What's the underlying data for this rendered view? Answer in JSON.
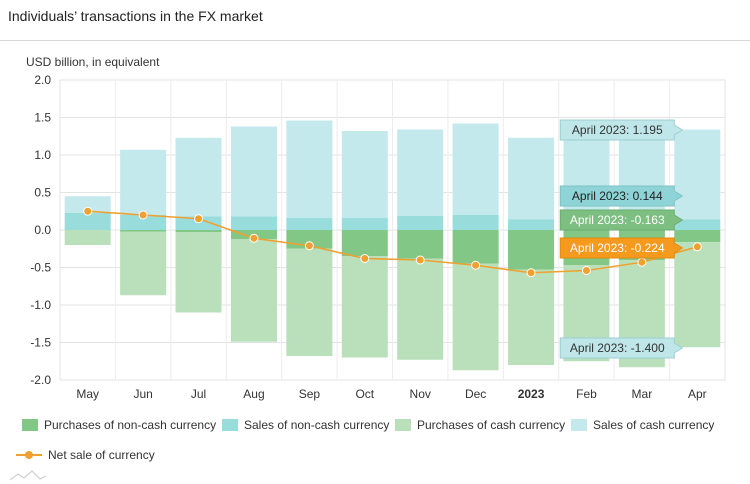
{
  "title": "Individuals’ transactions in the FX market",
  "unit_label": "USD billion, in equivalent",
  "colors": {
    "purchases_noncash": "#82c785",
    "sales_noncash": "#99dcdc",
    "purchases_cash": "#b9e0bb",
    "sales_cash": "#c3e9ec",
    "net": "#f0a030",
    "tooltip_cyan": "#bfe6e8",
    "tooltip_teal": "#8ed3d6",
    "tooltip_green": "#7cbf80",
    "tooltip_orange": "#f59a1c"
  },
  "chart_data": {
    "type": "bar",
    "categories": [
      "May",
      "Jun",
      "Jul",
      "Aug",
      "Sep",
      "Oct",
      "Nov",
      "Dec",
      "2023",
      "Feb",
      "Mar",
      "Apr"
    ],
    "bold_categories": [
      "2023"
    ],
    "ylim": [
      -2.0,
      2.0
    ],
    "yticks": [
      "2.0",
      "1.5",
      "1.0",
      "0.5",
      "0.0",
      "-0.5",
      "-1.0",
      "-1.5",
      "-2.0"
    ],
    "ytick_values": [
      2.0,
      1.5,
      1.0,
      0.5,
      0.0,
      -0.5,
      -1.0,
      -1.5,
      -2.0
    ],
    "grid": true,
    "legend_position": "bottom",
    "series": [
      {
        "name": "Purchases of non-cash currency",
        "values": [
          0.0,
          -0.02,
          -0.03,
          -0.12,
          -0.25,
          -0.35,
          -0.38,
          -0.45,
          -0.53,
          -0.47,
          -0.4,
          -0.163
        ]
      },
      {
        "name": "Sales of non-cash currency",
        "values": [
          0.23,
          0.2,
          0.18,
          0.18,
          0.16,
          0.16,
          0.19,
          0.2,
          0.14,
          0.13,
          0.11,
          0.144
        ]
      },
      {
        "name": "Purchases of cash currency",
        "values": [
          -0.2,
          -0.85,
          -1.07,
          -1.37,
          -1.43,
          -1.35,
          -1.35,
          -1.42,
          -1.27,
          -1.28,
          -1.43,
          -1.4
        ]
      },
      {
        "name": "Sales of cash currency",
        "values": [
          0.22,
          0.87,
          1.05,
          1.2,
          1.3,
          1.16,
          1.15,
          1.22,
          1.09,
          1.08,
          1.18,
          1.195
        ]
      },
      {
        "name": "Net sale of currency",
        "type": "line",
        "values": [
          0.25,
          0.2,
          0.15,
          -0.11,
          -0.21,
          -0.38,
          -0.4,
          -0.47,
          -0.57,
          -0.54,
          -0.43,
          -0.224
        ]
      }
    ],
    "tooltips": [
      {
        "label": "April 2023: 1.195",
        "series": "Sales of cash currency",
        "value": 1.195
      },
      {
        "label": "April 2023: 0.144",
        "series": "Sales of non-cash currency",
        "value": 0.144
      },
      {
        "label": "April 2023: -0.163",
        "series": "Purchases of non-cash currency",
        "value": -0.163
      },
      {
        "label": "April 2023: -0.224",
        "series": "Net sale of currency",
        "value": -0.224
      },
      {
        "label": "April 2023: -1.400",
        "series": "Purchases of cash currency",
        "value": -1.4
      }
    ]
  },
  "legend": {
    "purchases_noncash": "Purchases of non-cash currency",
    "sales_noncash": "Sales of non-cash currency",
    "purchases_cash": "Purchases of cash currency",
    "sales_cash": "Sales of cash currency",
    "net": "Net sale of currency"
  }
}
